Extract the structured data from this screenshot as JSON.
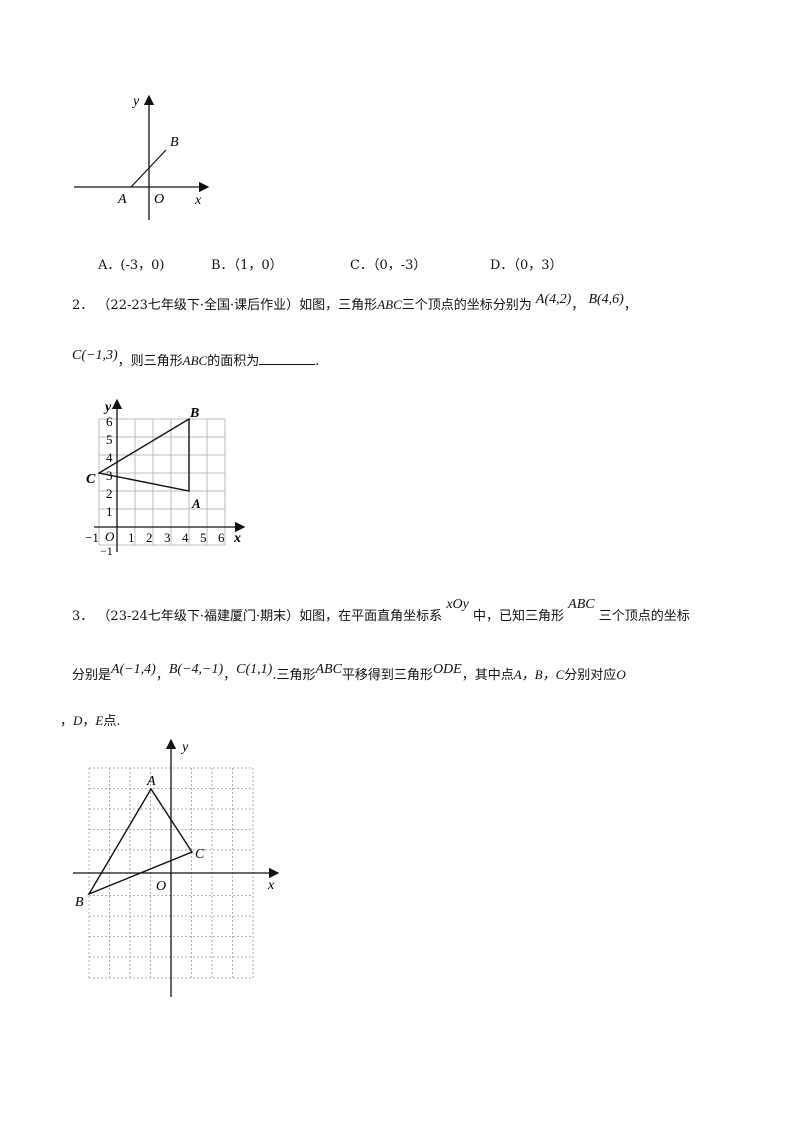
{
  "q1": {
    "figure": {
      "axis_x": "x",
      "axis_y": "y",
      "origin": "O",
      "point_a": "A",
      "point_b": "B"
    },
    "options": [
      {
        "letter": "A．",
        "value": "(-3，0)"
      },
      {
        "letter": "B．",
        "value": "（1，0）"
      },
      {
        "letter": "C．",
        "value": "（0，-3）"
      },
      {
        "letter": "D．",
        "value": "（0，3）"
      }
    ]
  },
  "q2": {
    "number": "2．",
    "source": "（22-23七年级下·全国·课后作业）",
    "text_1": "如图，三角形",
    "abc": "ABC",
    "text_2": "三个顶点的坐标分别为",
    "pt_a": "A(4,2)",
    "sep": "，",
    "pt_b": "B(4,6)",
    "sep2": "，",
    "pt_c": "C(−1,3)",
    "text_3": "，则三角形",
    "abc2": "ABC",
    "text_4": "的面积为",
    "end": ".",
    "figure": {
      "y_ticks": [
        "1",
        "2",
        "3",
        "4",
        "5",
        "6"
      ],
      "x_ticks": [
        "1",
        "2",
        "3",
        "4",
        "5",
        "6"
      ],
      "neg_x": "−1",
      "neg_y": "−1",
      "origin": "O",
      "axis_x": "x",
      "axis_y": "y",
      "label_a": "A",
      "label_b": "B",
      "label_c": "C"
    }
  },
  "q3": {
    "number": "3．",
    "source": "（23-24七年级下·福建厦门·期末）",
    "text_1": "如图，在平面直角坐标系",
    "xoy": "xOy",
    "text_2": "中，已知三角形",
    "abc": "ABC",
    "text_3": "三个顶点的坐标",
    "line2_start": "分别是",
    "pt_a": "A(−1,4)",
    "sep1": "，",
    "pt_b": "B(−4,−1)",
    "sep2": "，",
    "pt_c": "C(1,1)",
    "text_4": ".三角形",
    "abc2": "ABC",
    "text_5": "平移得到三角形",
    "ode": "ODE",
    "text_6": "，其中点",
    "letters": "A，B，C",
    "text_7": "分别对应",
    "o": "O",
    "line3_start": "，",
    "d": "D",
    "sep3": "，",
    "e": "E",
    "text_8": "点.",
    "figure": {
      "axis_x": "x",
      "axis_y": "y",
      "origin": "O",
      "label_a": "A",
      "label_b": "B",
      "label_c": "C"
    }
  }
}
